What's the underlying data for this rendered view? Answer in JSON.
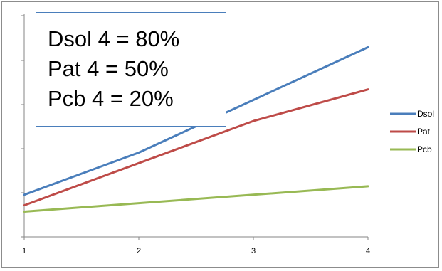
{
  "chart_data": {
    "type": "line",
    "x": [
      1,
      2,
      3,
      4
    ],
    "categories": [
      "1",
      "2",
      "3",
      "4"
    ],
    "series": [
      {
        "name": "Dsol",
        "color": "#4a7ebb",
        "values": [
          2.0,
          4.0,
          6.5,
          9.0
        ]
      },
      {
        "name": "Pat",
        "color": "#be4b48",
        "values": [
          1.5,
          3.5,
          5.5,
          7.0
        ]
      },
      {
        "name": "Pcb",
        "color": "#98b954",
        "values": [
          1.2,
          1.6,
          2.0,
          2.4
        ]
      }
    ],
    "ylim": [
      0,
      10.5
    ],
    "yticks_labeled": false,
    "grid": false,
    "legend_position": "right",
    "title": "",
    "xlabel": "",
    "ylabel": "",
    "annotation": {
      "lines": [
        "Dsol 4 = 80%",
        "Pat 4 = 50%",
        "Pcb 4 = 20%"
      ],
      "border_color": "#4a7ebb"
    }
  }
}
